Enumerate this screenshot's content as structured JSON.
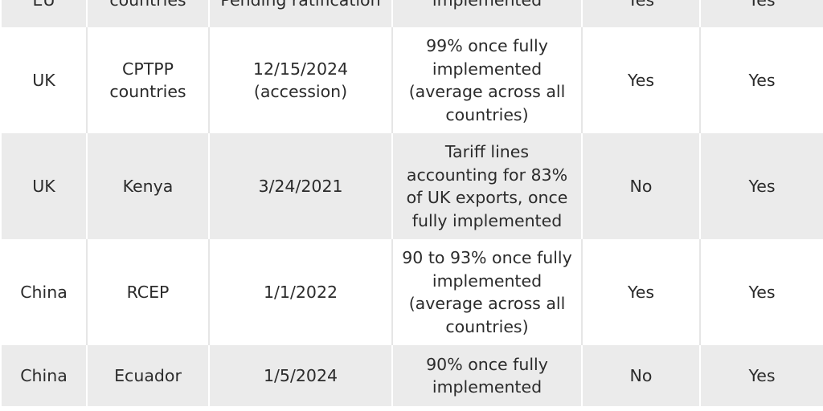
{
  "table": {
    "rows": [
      {
        "country": "EU",
        "partner": "countries",
        "date": "Pending ratification",
        "coverage": "implemented",
        "col5": "Yes",
        "col6": "Yes"
      },
      {
        "country": "UK",
        "partner": "CPTPP countries",
        "date": "12/15/2024 (accession)",
        "coverage": "99% once fully implemented (average across all countries)",
        "col5": "Yes",
        "col6": "Yes"
      },
      {
        "country": "UK",
        "partner": "Kenya",
        "date": "3/24/2021",
        "coverage": "Tariff lines accounting for 83% of UK exports, once fully implemented",
        "col5": "No",
        "col6": "Yes"
      },
      {
        "country": "China",
        "partner": "RCEP",
        "date": "1/1/2022",
        "coverage": "90 to 93% once fully implemented (average across all countries)",
        "col5": "Yes",
        "col6": "Yes"
      },
      {
        "country": "China",
        "partner": "Ecuador",
        "date": "1/5/2024",
        "coverage": "90% once fully implemented",
        "col5": "No",
        "col6": "Yes"
      }
    ]
  }
}
